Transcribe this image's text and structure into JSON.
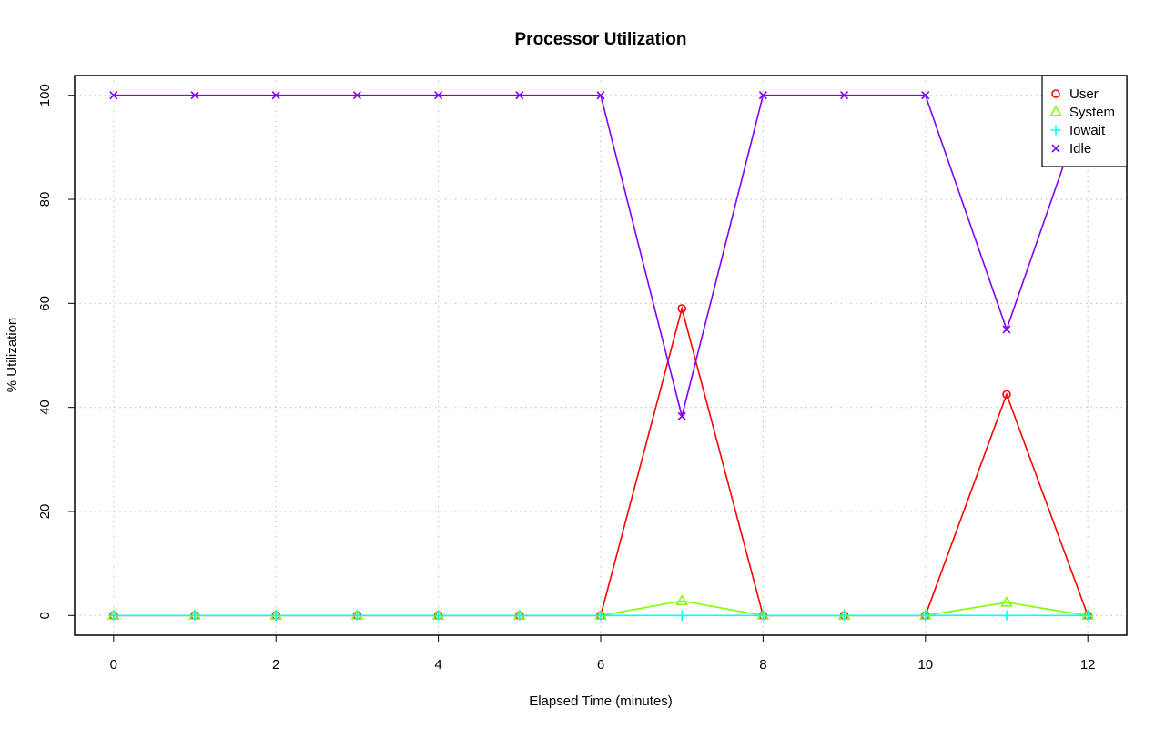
{
  "chart_data": {
    "type": "line",
    "title": "Processor Utilization",
    "xlabel": "Elapsed Time (minutes)",
    "ylabel": "% Utilization",
    "xlim": [
      -0.48,
      12.48
    ],
    "ylim": [
      -3.8,
      103.8
    ],
    "x_ticks": [
      0,
      2,
      4,
      6,
      8,
      10,
      12
    ],
    "y_ticks": [
      0,
      20,
      40,
      60,
      80,
      100
    ],
    "x_tick_labels": [
      "0",
      "2",
      "4",
      "6",
      "8",
      "10",
      "12"
    ],
    "y_tick_labels": [
      "0",
      "20",
      "40",
      "60",
      "80",
      "100"
    ],
    "grid": true,
    "legend_position": "top-right",
    "x": [
      0,
      1,
      2,
      3,
      4,
      5,
      6,
      7,
      8,
      9,
      10,
      11,
      12
    ],
    "series": [
      {
        "name": "User",
        "color": "#ff0000",
        "marker": "circle",
        "values": [
          0,
          0,
          0,
          0,
          0,
          0,
          0,
          59,
          0,
          0,
          0,
          42.5,
          0
        ]
      },
      {
        "name": "System",
        "color": "#80ff00",
        "marker": "triangle",
        "values": [
          0,
          0,
          0,
          0,
          0,
          0,
          0,
          2.8,
          0,
          0,
          0,
          2.5,
          0
        ]
      },
      {
        "name": "Iowait",
        "color": "#00ffff",
        "marker": "plus",
        "values": [
          0,
          0,
          0,
          0,
          0,
          0,
          0,
          0,
          0,
          0,
          0,
          0,
          0
        ]
      },
      {
        "name": "Idle",
        "color": "#8000ff",
        "marker": "cross",
        "values": [
          100,
          100,
          100,
          100,
          100,
          100,
          100,
          38.3,
          100,
          100,
          100,
          55,
          100
        ]
      }
    ]
  }
}
